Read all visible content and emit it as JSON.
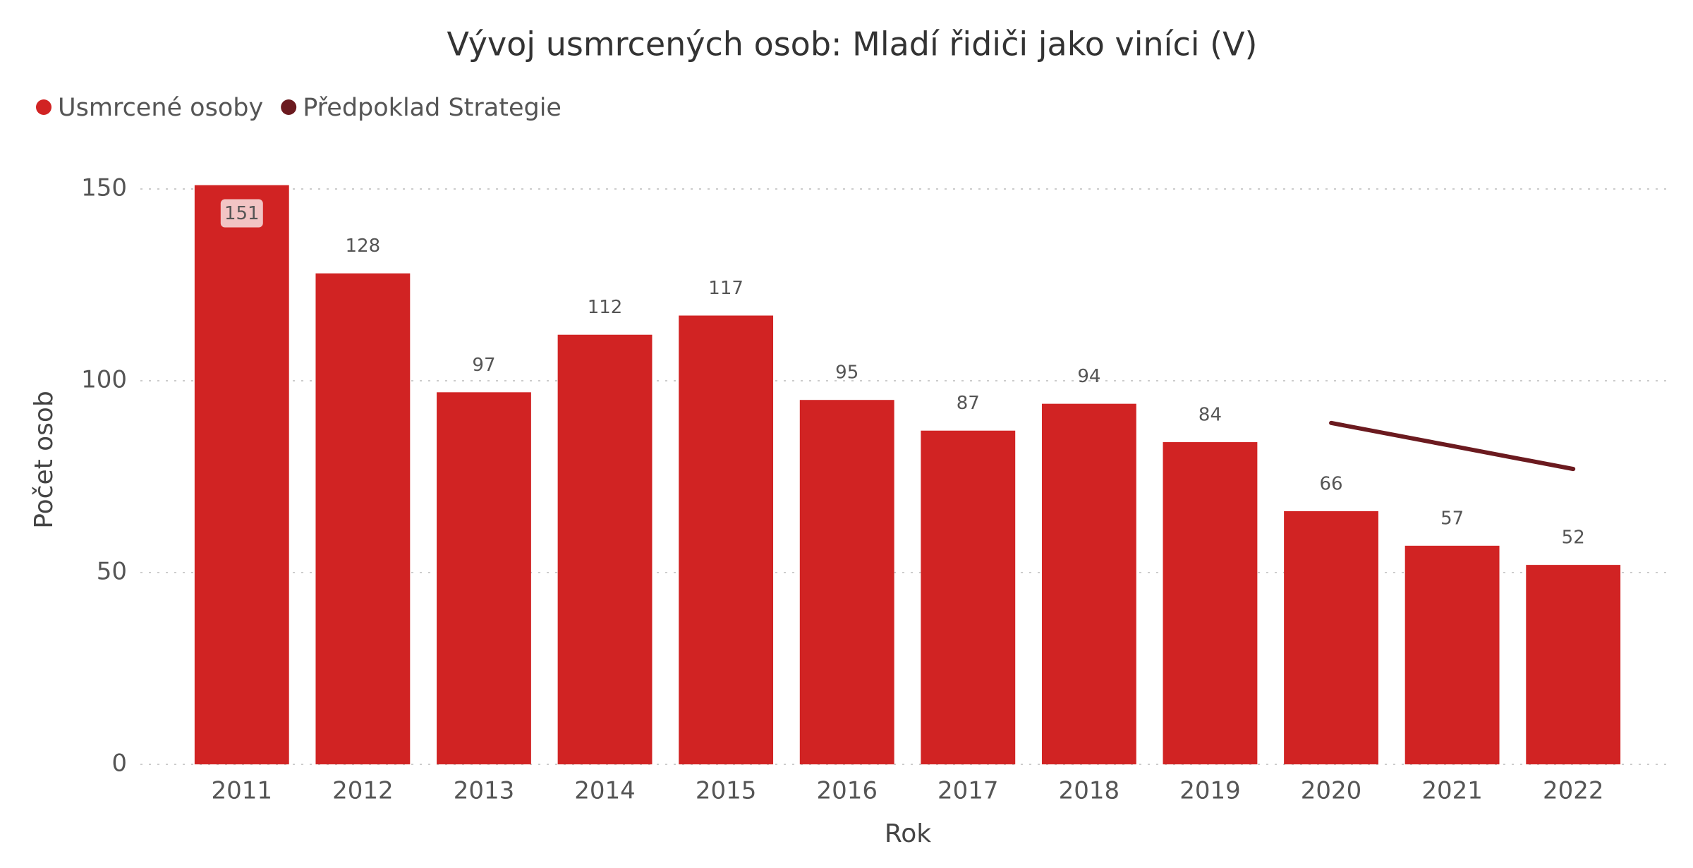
{
  "chart_data": {
    "type": "bar",
    "title": "Vývoj usmrcených osob: Mladí řidiči jako viníci (V)",
    "x_label": "Rok",
    "y_label": "Počet osob",
    "categories": [
      "2011",
      "2012",
      "2013",
      "2014",
      "2015",
      "2016",
      "2017",
      "2018",
      "2019",
      "2020",
      "2021",
      "2022"
    ],
    "series": [
      {
        "name": "Usmrcené osoby",
        "type": "bar",
        "color": "#d12323",
        "values": [
          151,
          128,
          97,
          112,
          117,
          95,
          87,
          94,
          84,
          66,
          57,
          52
        ]
      },
      {
        "name": "Předpoklad Strategie",
        "type": "line",
        "color": "#6b1a1f",
        "values": [
          null,
          null,
          null,
          null,
          null,
          null,
          null,
          null,
          null,
          89,
          83,
          77
        ]
      }
    ],
    "ylim": [
      0,
      150
    ],
    "yticks": [
      0,
      50,
      100,
      150
    ],
    "grid": true,
    "legend": "top-left"
  }
}
